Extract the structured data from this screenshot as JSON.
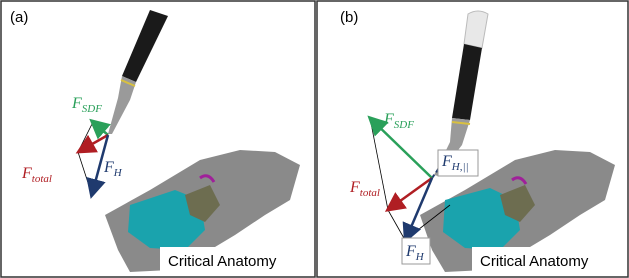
{
  "panels": [
    {
      "label": "(a)",
      "forces": {
        "sdf": {
          "symbol": "F",
          "subscript": "SDF"
        },
        "total": {
          "symbol": "F",
          "subscript": "total"
        },
        "haptic": {
          "symbol": "F",
          "subscript": "H"
        }
      },
      "anatomy_label": "Critical Anatomy"
    },
    {
      "label": "(b)",
      "forces": {
        "sdf": {
          "symbol": "F",
          "subscript": "SDF"
        },
        "total": {
          "symbol": "F",
          "subscript": "total"
        },
        "haptic": {
          "symbol": "F",
          "subscript": "H"
        },
        "parallel": {
          "symbol": "F",
          "subscript": "H,||"
        }
      },
      "anatomy_label": "Critical Anatomy"
    }
  ]
}
